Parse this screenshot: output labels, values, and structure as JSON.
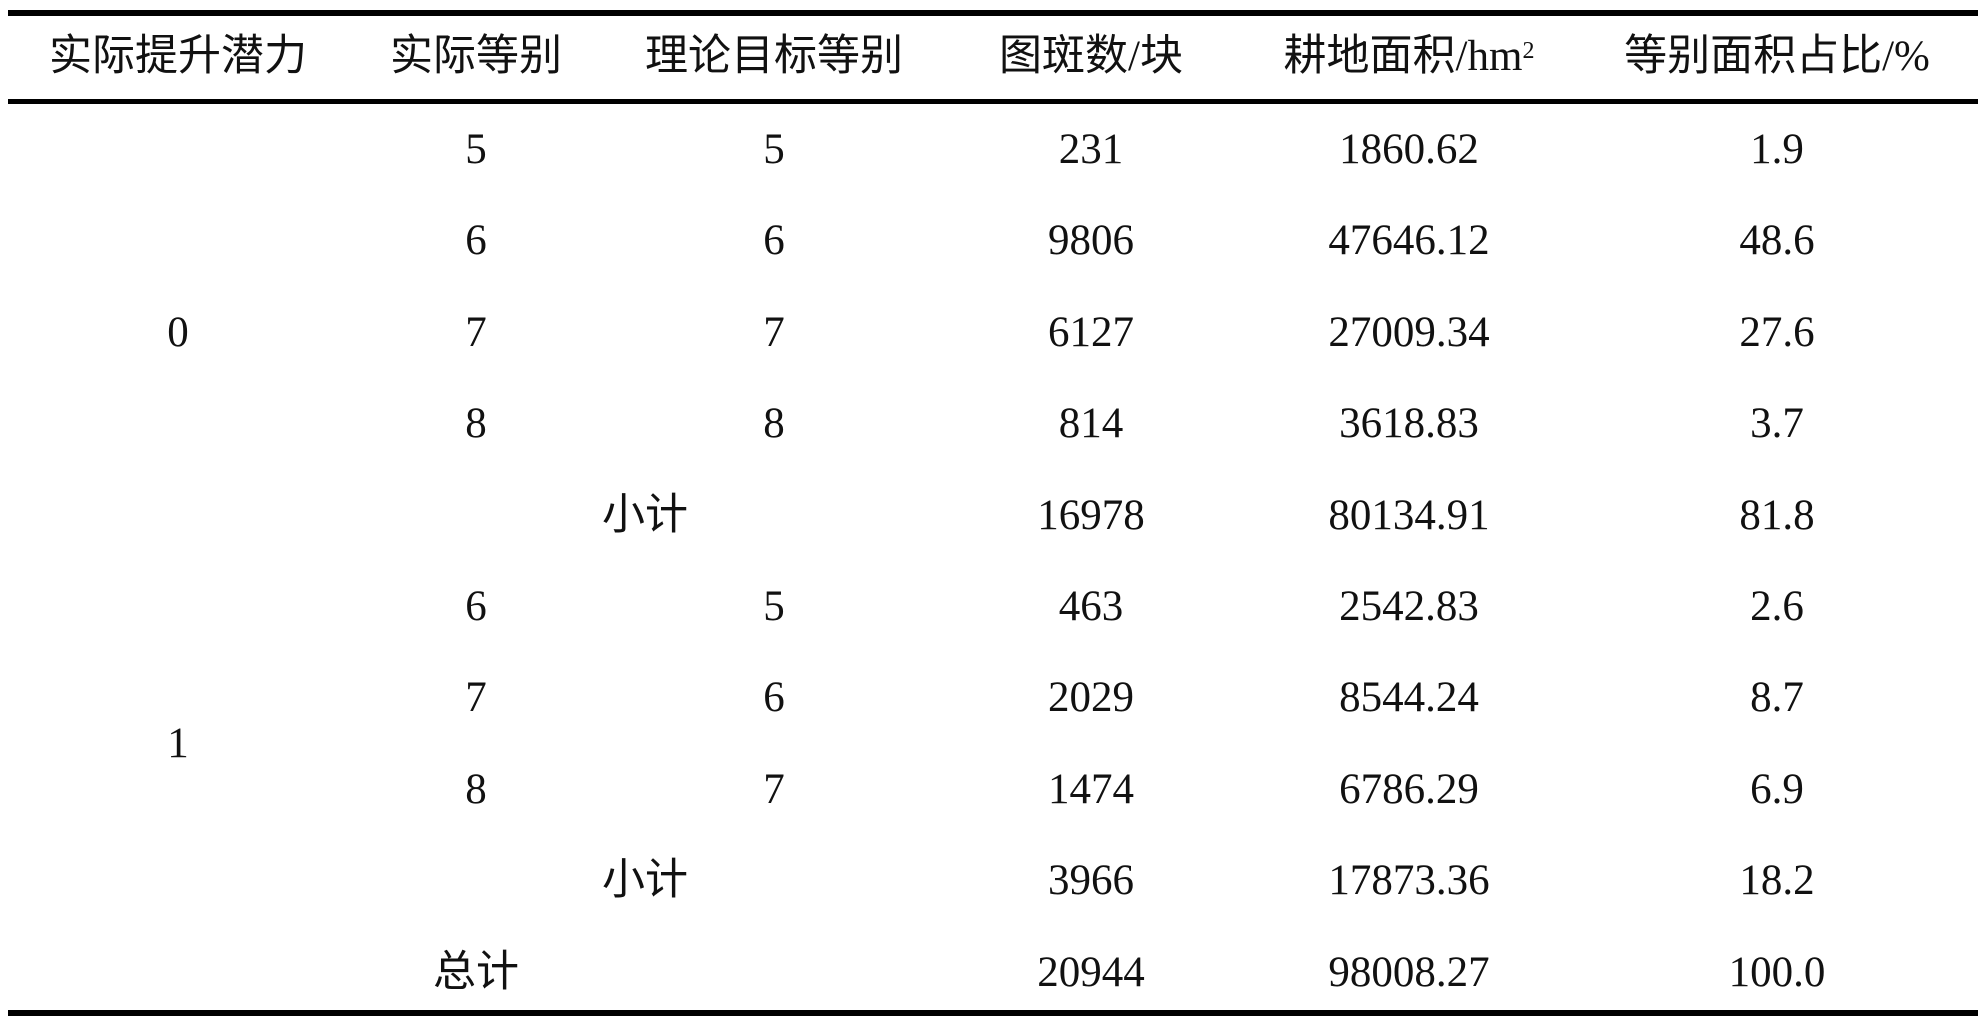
{
  "table": {
    "headers": [
      "实际提升潜力",
      "实际等别",
      "理论目标等别",
      "图斑数/块",
      "耕地面积/hm",
      "等别面积占比/%"
    ],
    "header_superscript": "2",
    "groups": [
      {
        "potential": "0",
        "rows": [
          [
            "5",
            "5",
            "231",
            "1860.62",
            "1.9"
          ],
          [
            "6",
            "6",
            "9806",
            "47646.12",
            "48.6"
          ],
          [
            "7",
            "7",
            "6127",
            "27009.34",
            "27.6"
          ],
          [
            "8",
            "8",
            "814",
            "3618.83",
            "3.7"
          ]
        ],
        "subtotal": {
          "label": "小计",
          "values": [
            "16978",
            "80134.91",
            "81.8"
          ]
        }
      },
      {
        "potential": "1",
        "rows": [
          [
            "6",
            "5",
            "463",
            "2542.83",
            "2.6"
          ],
          [
            "7",
            "6",
            "2029",
            "8544.24",
            "8.7"
          ],
          [
            "8",
            "7",
            "1474",
            "6786.29",
            "6.9"
          ]
        ],
        "subtotal": {
          "label": "小计",
          "values": [
            "3966",
            "17873.36",
            "18.2"
          ]
        }
      }
    ],
    "total": {
      "label": "总计",
      "values": [
        "20944",
        "98008.27",
        "100.0"
      ]
    }
  }
}
